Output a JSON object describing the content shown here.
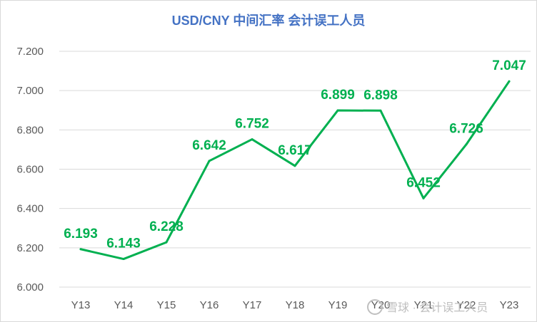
{
  "chart_data": {
    "type": "line",
    "title": "USD/CNY 中间汇率   会计误工人员",
    "xlabel": "",
    "ylabel": "",
    "categories": [
      "Y13",
      "Y14",
      "Y15",
      "Y16",
      "Y17",
      "Y18",
      "Y19",
      "Y20",
      "Y21",
      "Y22",
      "Y23"
    ],
    "series": [
      {
        "values": [
          6.193,
          6.143,
          6.228,
          6.642,
          6.752,
          6.617,
          6.899,
          6.898,
          6.452,
          6.726,
          7.047
        ],
        "labels": [
          "6.193",
          "6.143",
          "6.228",
          "6.642",
          "6.752",
          "6.617",
          "6.899",
          "6.898",
          "6.452",
          "6.726",
          "7.047"
        ]
      }
    ],
    "ylim": [
      6.0,
      7.2
    ],
    "yticks": [
      "6.000",
      "6.200",
      "6.400",
      "6.600",
      "6.800",
      "7.000",
      "7.200"
    ],
    "grid": true,
    "legend": "none",
    "line_color": "#00b050",
    "grid_color": "#d9d9d9",
    "title_color": "#4472c4"
  },
  "watermark": {
    "text": "雪球 · 会计误工人员"
  }
}
